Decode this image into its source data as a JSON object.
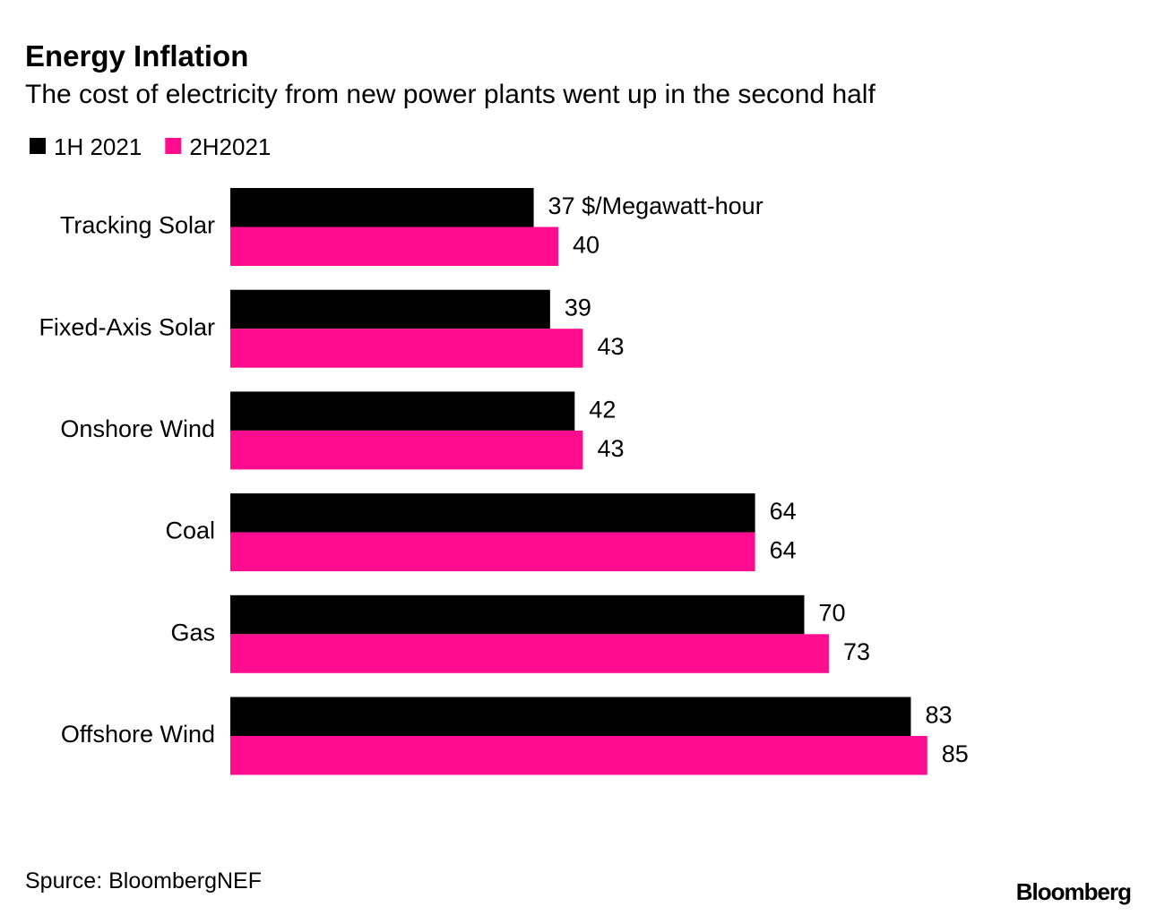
{
  "chart_data": {
    "type": "bar",
    "orientation": "horizontal",
    "title": "Energy Inflation",
    "subtitle": "The cost of electricity from new power plants went up in the second half",
    "categories": [
      "Tracking Solar",
      "Fixed-Axis Solar",
      "Onshore Wind",
      "Coal",
      "Gas",
      "Offshore Wind"
    ],
    "series": [
      {
        "name": "1H 2021",
        "color": "#000000",
        "values": [
          37,
          39,
          42,
          64,
          70,
          83
        ],
        "value_labels": [
          "37 $/Megawatt-hour",
          "39",
          "42",
          "64",
          "70",
          "83"
        ]
      },
      {
        "name": "2H2021",
        "color": "#ff0d8e",
        "values": [
          40,
          43,
          43,
          64,
          73,
          85
        ]
      }
    ],
    "xlim": [
      0,
      100
    ],
    "source": "Spurce: BloombergNEF",
    "brand": "Bloomberg"
  }
}
